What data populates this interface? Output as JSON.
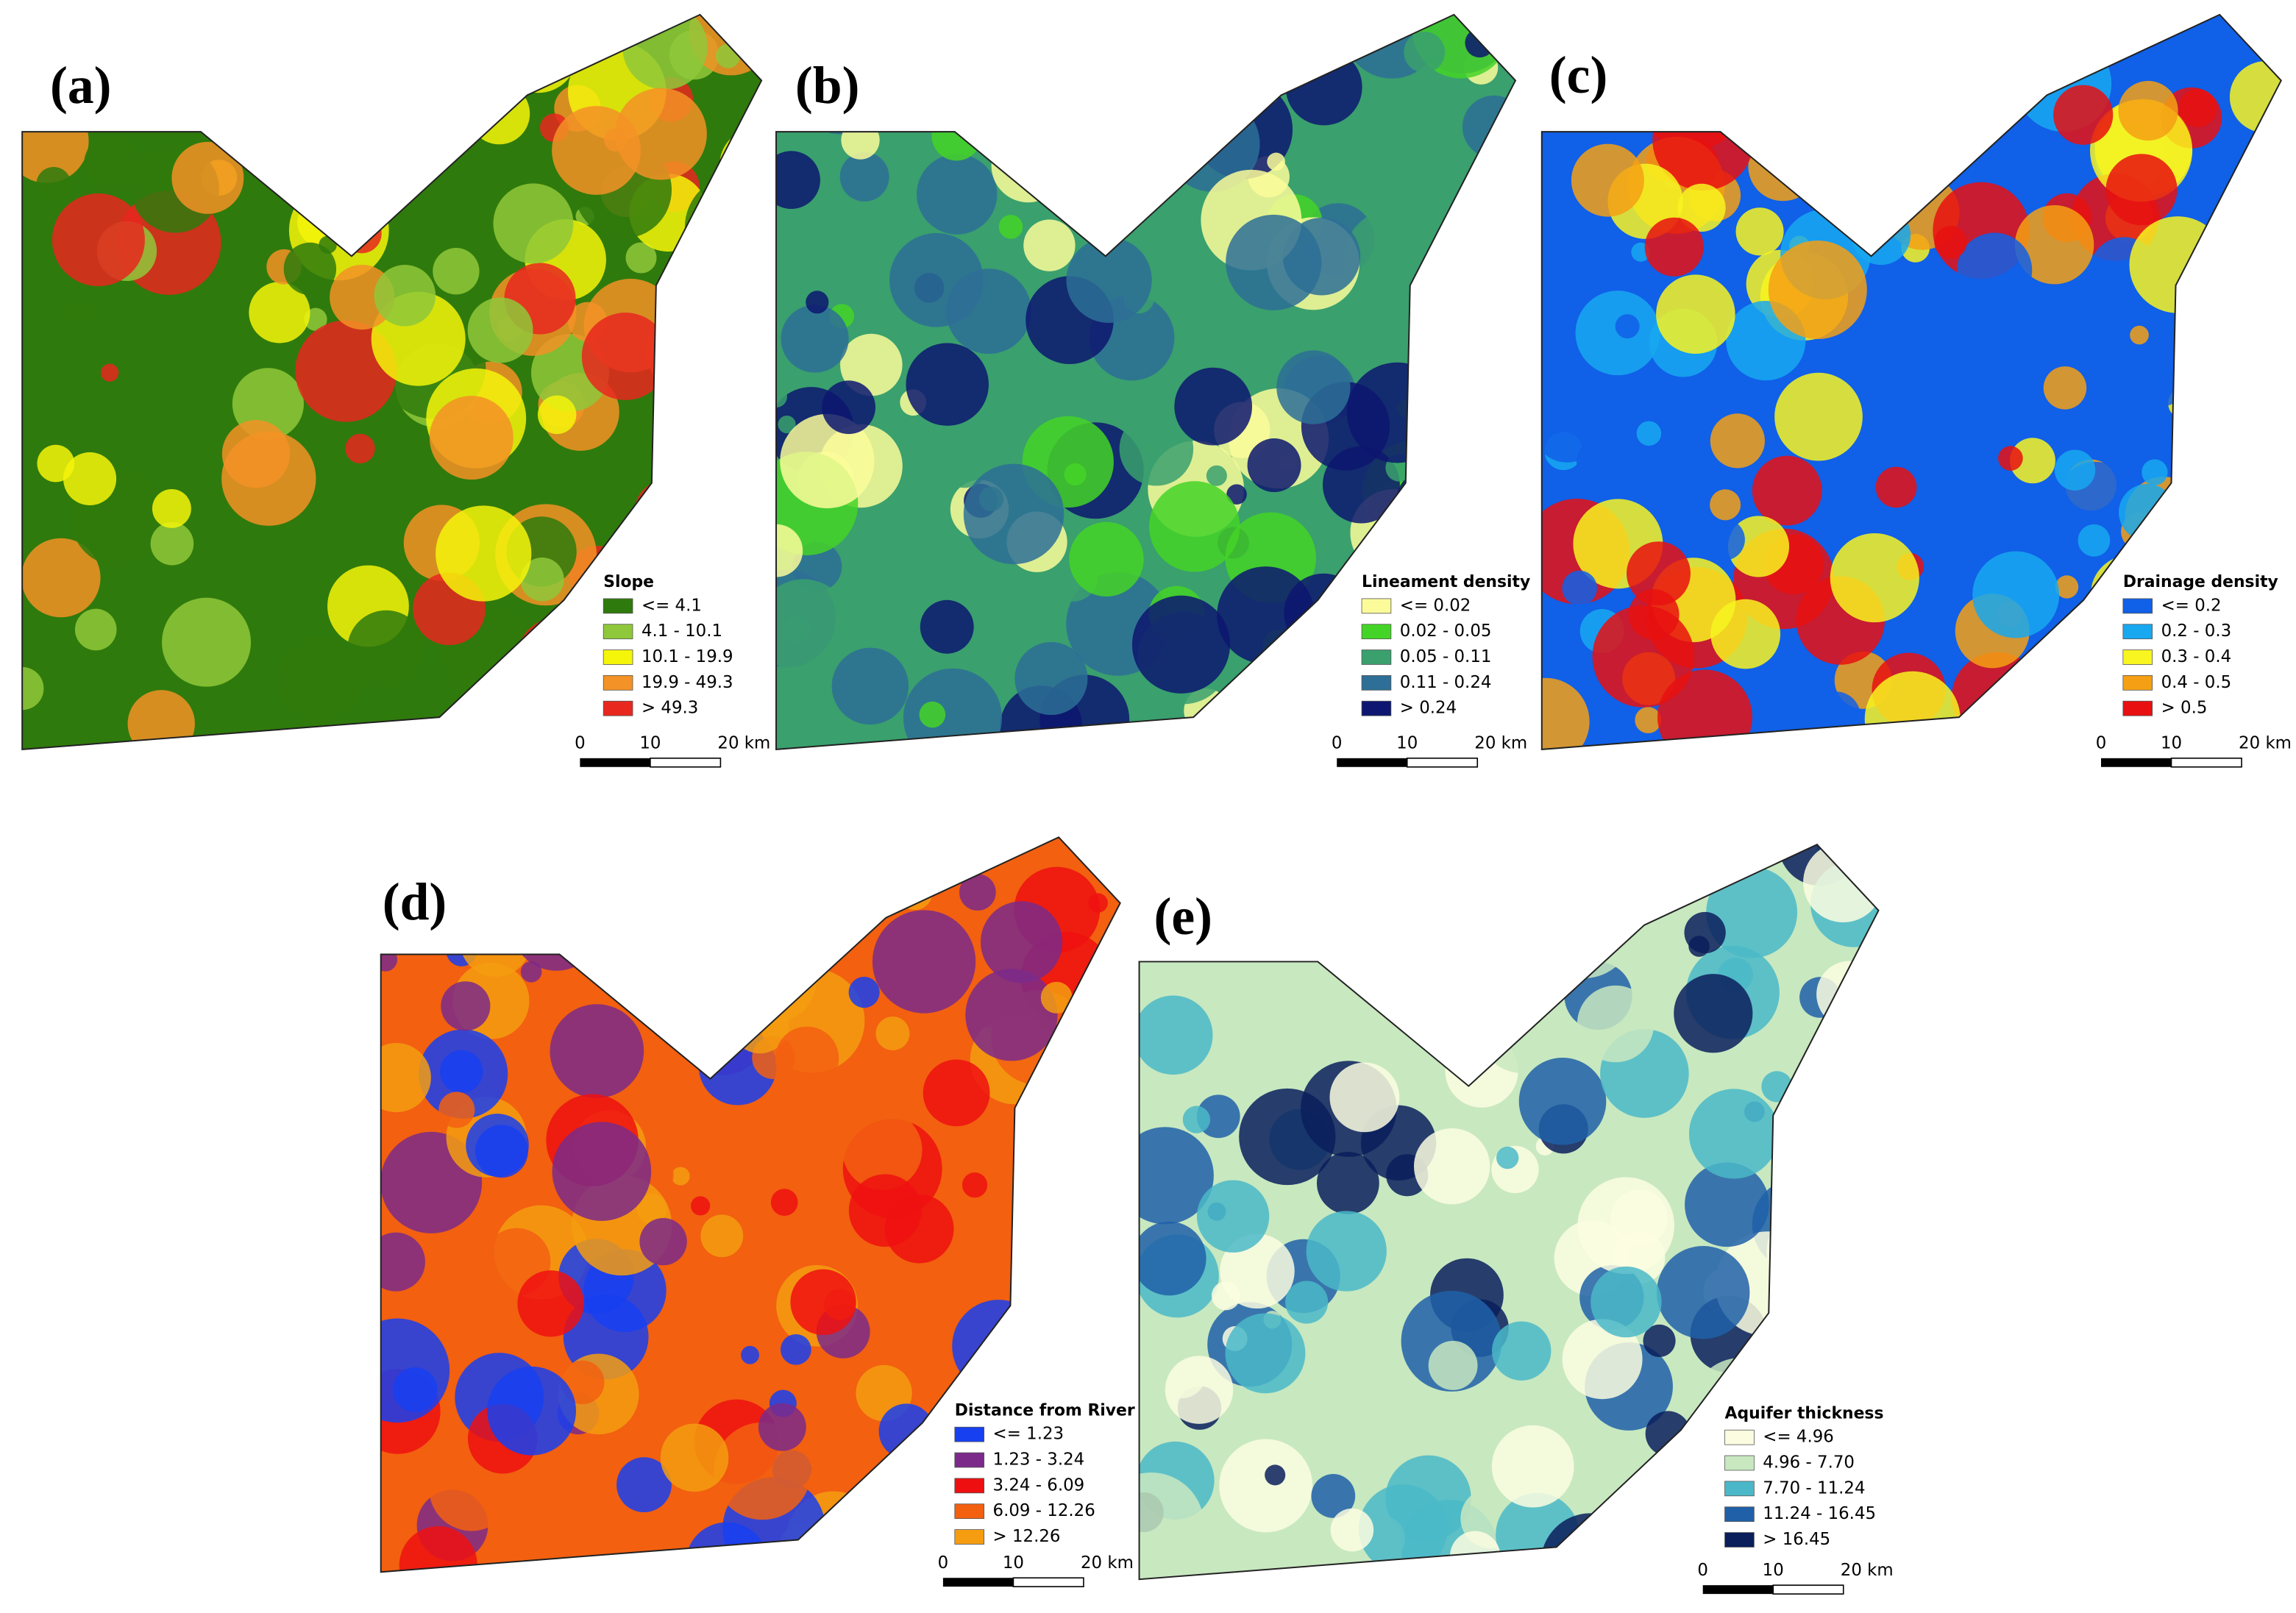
{
  "panels": [
    {
      "label": "(a)",
      "legend": {
        "title": "Slope",
        "items": [
          {
            "label": "<= 4.1",
            "color": "#2f7a0c"
          },
          {
            "label": "4.1 - 10.1",
            "color": "#8fc83a"
          },
          {
            "label": "10.1 - 19.9",
            "color": "#f5f50a"
          },
          {
            "label": "19.9 - 49.3",
            "color": "#f39226"
          },
          {
            "label": "> 49.3",
            "color": "#e8271f"
          }
        ]
      },
      "scale_bar": [
        "0",
        "10",
        "20 km"
      ]
    },
    {
      "label": "(b)",
      "legend": {
        "title": "Lineament density",
        "items": [
          {
            "label": "<= 0.02",
            "color": "#fbfb9a"
          },
          {
            "label": "0.02 - 0.05",
            "color": "#44d427"
          },
          {
            "label": "0.05 - 0.11",
            "color": "#3aa06e"
          },
          {
            "label": "0.11 - 0.24",
            "color": "#2d6f96"
          },
          {
            "label": "> 0.24",
            "color": "#0d1670"
          }
        ]
      },
      "scale_bar": [
        "0",
        "10",
        "20 km"
      ]
    },
    {
      "label": "(c)",
      "legend": {
        "title": "Drainage density",
        "items": [
          {
            "label": "<= 0.2",
            "color": "#1060e8"
          },
          {
            "label": "0.2 - 0.3",
            "color": "#18a8f0"
          },
          {
            "label": "0.3 - 0.4",
            "color": "#f8f520"
          },
          {
            "label": "0.4 - 0.5",
            "color": "#f5a014"
          },
          {
            "label": "> 0.5",
            "color": "#e81010"
          }
        ]
      },
      "scale_bar": [
        "0",
        "10",
        "20 km"
      ]
    },
    {
      "label": "(d)",
      "legend": {
        "title": "Distance from River",
        "items": [
          {
            "label": "<= 1.23",
            "color": "#1740f0"
          },
          {
            "label": "1.23 - 3.24",
            "color": "#7b2a8a"
          },
          {
            "label": "3.24 - 6.09",
            "color": "#ee1010"
          },
          {
            "label": "6.09 - 12.26",
            "color": "#f26010"
          },
          {
            "label": "> 12.26",
            "color": "#f59c10"
          }
        ]
      },
      "scale_bar": [
        "0",
        "10",
        "20 km"
      ]
    },
    {
      "label": "(e)",
      "legend": {
        "title": "Aquifer thickness",
        "items": [
          {
            "label": "<= 4.96",
            "color": "#fcfde0"
          },
          {
            "label": "4.96 - 7.70",
            "color": "#c8e8c0"
          },
          {
            "label": "7.70 - 11.24",
            "color": "#4ab8c8"
          },
          {
            "label": "11.24 - 16.45",
            "color": "#2060a8"
          },
          {
            "label": "> 16.45",
            "color": "#0a1f5c"
          }
        ]
      },
      "scale_bar": [
        "0",
        "10",
        "20 km"
      ]
    }
  ]
}
